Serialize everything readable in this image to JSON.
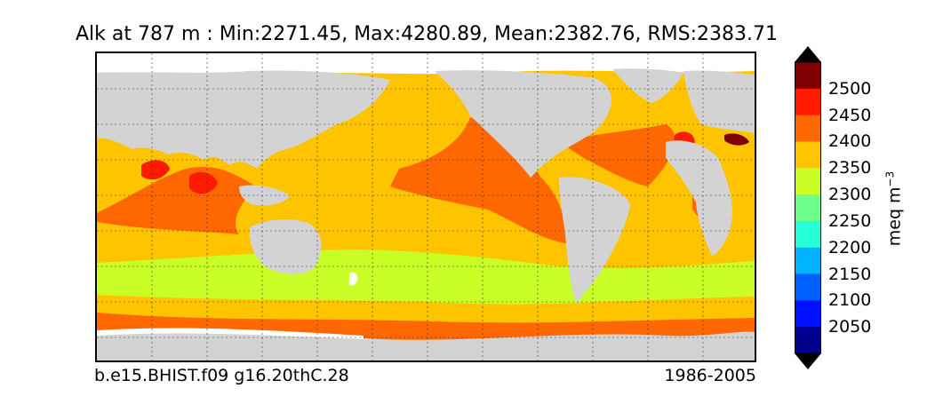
{
  "title": "Alk at 787 m : Min:2271.45, Max:4280.89, Mean:2382.76, RMS:2383.71",
  "footer": {
    "run_id": "b.e15.BHIST.f09 g16.20thC.28",
    "period": "1986-2005"
  },
  "colorbar": {
    "ticks": [
      "2500",
      "2450",
      "2400",
      "2350",
      "2300",
      "2250",
      "2200",
      "2150",
      "2100",
      "2050"
    ],
    "units_base": "meq m",
    "units_exp": "−3",
    "colors": [
      "#7f0000",
      "#ff1a00",
      "#ff6800",
      "#ffc400",
      "#c9ff27",
      "#6dff8a",
      "#27ffd6",
      "#00b4ff",
      "#0060ff",
      "#0010ff",
      "#00008f"
    ]
  },
  "map_colors": {
    "land": "#d3d3d3",
    "sea_ice": "#ffffff",
    "v2250": "#6dff8a",
    "v2300": "#c9ff27",
    "v2350": "#ffc400",
    "v2400": "#ff6800",
    "v2450": "#ff1a00",
    "v2500": "#7f0000"
  }
}
